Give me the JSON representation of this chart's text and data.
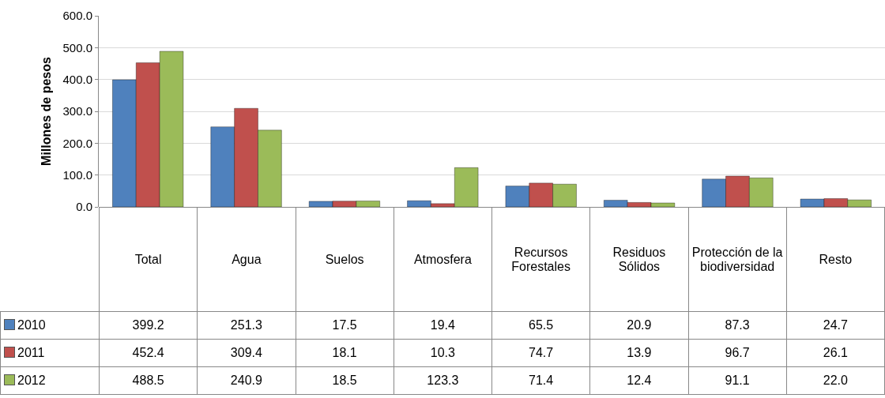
{
  "chart_data": {
    "type": "bar",
    "ylabel": "Millones de pesos",
    "categories": [
      "Total",
      "Agua",
      "Suelos",
      "Atmosfera",
      "Recursos Forestales",
      "Residuos Sólidos",
      "Protección de la biodiversidad",
      "Resto"
    ],
    "series": [
      {
        "name": "2010",
        "color": "#4f81bd",
        "values": [
          399.2,
          251.3,
          17.5,
          19.4,
          65.5,
          20.9,
          87.3,
          24.7
        ],
        "value_labels": [
          "399.2",
          "251.3",
          "17.5",
          "19.4",
          "65.5",
          "20.9",
          "87.3",
          "24.7"
        ]
      },
      {
        "name": "2011",
        "color": "#c0504d",
        "values": [
          452.4,
          309.4,
          18.1,
          10.3,
          74.7,
          13.9,
          96.7,
          26.1
        ],
        "value_labels": [
          "452.4",
          "309.4",
          "18.1",
          "10.3",
          "74.7",
          "13.9",
          "96.7",
          "26.1"
        ]
      },
      {
        "name": "2012",
        "color": "#9bbb59",
        "values": [
          488.5,
          240.9,
          18.5,
          123.3,
          71.4,
          12.4,
          91.1,
          22.0
        ],
        "value_labels": [
          "488.5",
          "240.9",
          "18.5",
          "123.3",
          "71.4",
          "12.4",
          "91.1",
          "22.0"
        ]
      }
    ],
    "ylim": [
      0,
      600
    ],
    "yticks": [
      {
        "value": 0,
        "label": "0.0"
      },
      {
        "value": 100,
        "label": "100.0"
      },
      {
        "value": 200,
        "label": "200.0"
      },
      {
        "value": 300,
        "label": "300.0"
      },
      {
        "value": 400,
        "label": "400.0"
      },
      {
        "value": 500,
        "label": "500.0"
      },
      {
        "value": 600,
        "label": "600.0"
      }
    ],
    "grid": "y",
    "data_labels": true,
    "legend": "bottom left"
  }
}
